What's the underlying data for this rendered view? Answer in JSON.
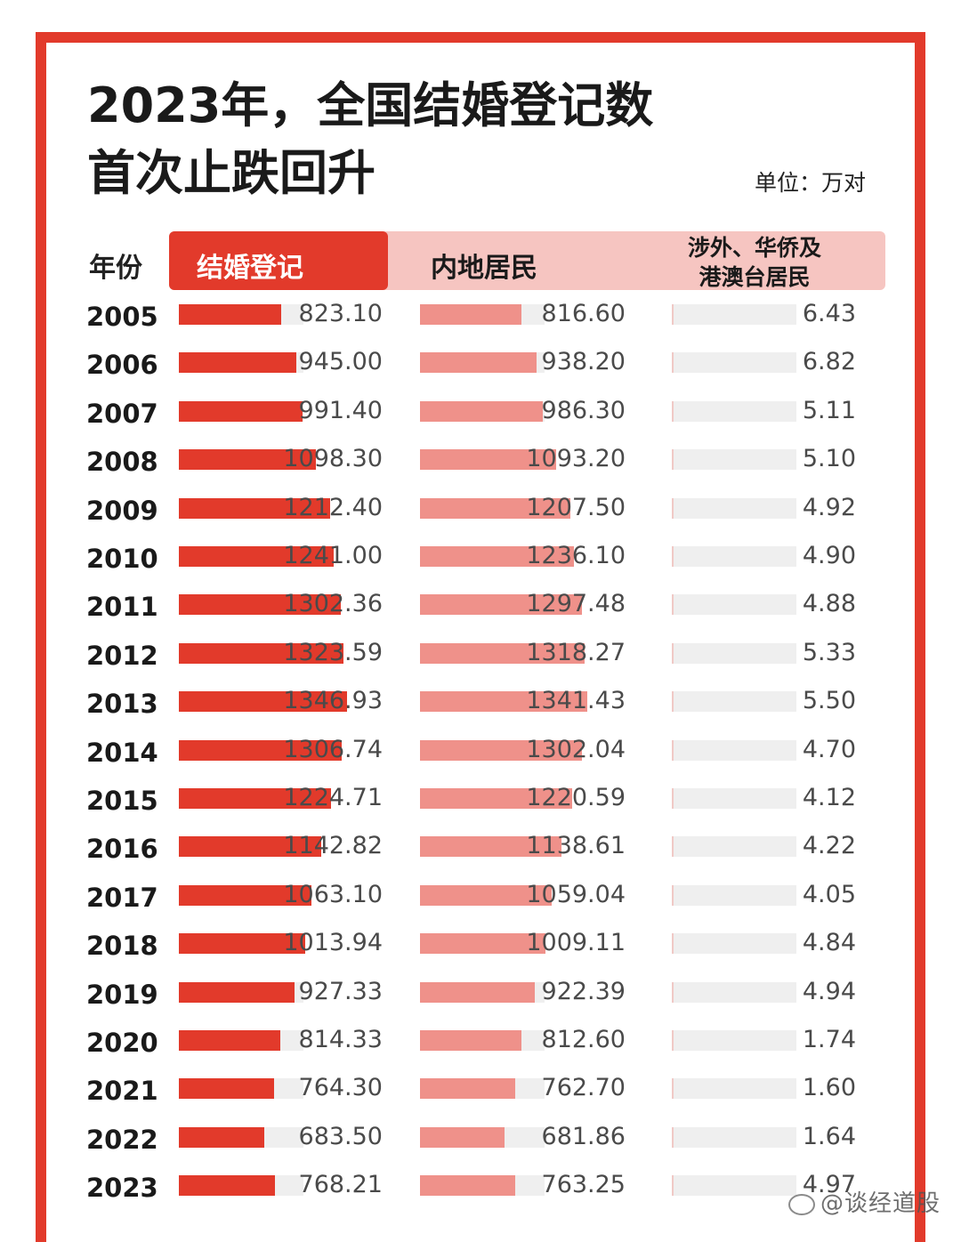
{
  "title": {
    "line1": "2023年，全国结婚登记数",
    "line2": "首次止跌回升"
  },
  "unit": "单位：万对",
  "headers": {
    "year": "年份",
    "total": "结婚登记",
    "mainland": "内地居民",
    "foreign_line1": "涉外、华侨及",
    "foreign_line2": "港澳台居民"
  },
  "colors": {
    "accent": "#e23a2b",
    "mainland_bar": "#ef918a",
    "header_band": "#f6c5c1",
    "track": "#efefef"
  },
  "chart_data": {
    "type": "bar",
    "categories": [
      "2005",
      "2006",
      "2007",
      "2008",
      "2009",
      "2010",
      "2011",
      "2012",
      "2013",
      "2014",
      "2015",
      "2016",
      "2017",
      "2018",
      "2019",
      "2020",
      "2021",
      "2022",
      "2023"
    ],
    "series": [
      {
        "name": "结婚登记",
        "values": [
          "823.10",
          "945.00",
          "991.40",
          "1098.30",
          "1212.40",
          "1241.00",
          "1302.36",
          "1323.59",
          "1346.93",
          "1306.74",
          "1224.71",
          "1142.82",
          "1063.10",
          "1013.94",
          "927.33",
          "814.33",
          "764.30",
          "683.50",
          "768.21"
        ]
      },
      {
        "name": "内地居民",
        "values": [
          "816.60",
          "938.20",
          "986.30",
          "1093.20",
          "1207.50",
          "1236.10",
          "1297.48",
          "1318.27",
          "1341.43",
          "1302.04",
          "1220.59",
          "1138.61",
          "1059.04",
          "1009.11",
          "922.39",
          "812.60",
          "762.70",
          "681.86",
          "763.25"
        ]
      },
      {
        "name": "涉外、华侨及港澳台居民",
        "values": [
          "6.43",
          "6.82",
          "5.11",
          "5.10",
          "4.92",
          "4.90",
          "4.88",
          "5.33",
          "5.50",
          "4.70",
          "4.12",
          "4.22",
          "4.05",
          "4.84",
          "4.94",
          "1.74",
          "1.60",
          "1.64",
          "4.97"
        ]
      }
    ],
    "scale_max": 1600
  },
  "watermark": "@谈经道股"
}
